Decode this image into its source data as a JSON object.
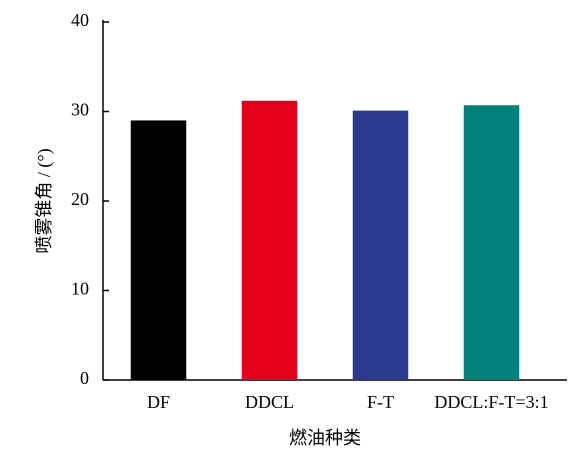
{
  "chart_data": {
    "type": "bar",
    "categories": [
      "DF",
      "DDCL",
      "F-T",
      "DDCL:F-T=3:1"
    ],
    "values": [
      29,
      31.2,
      30.1,
      30.7
    ],
    "colors": [
      "#000000",
      "#e3001b",
      "#2b3990",
      "#00817c"
    ],
    "ylim": [
      0,
      40
    ],
    "yticks": [
      0,
      10,
      20,
      30,
      40
    ],
    "y_label": "喷雾锥角 / (°)",
    "x_label": "燃油种类",
    "grid": false
  }
}
